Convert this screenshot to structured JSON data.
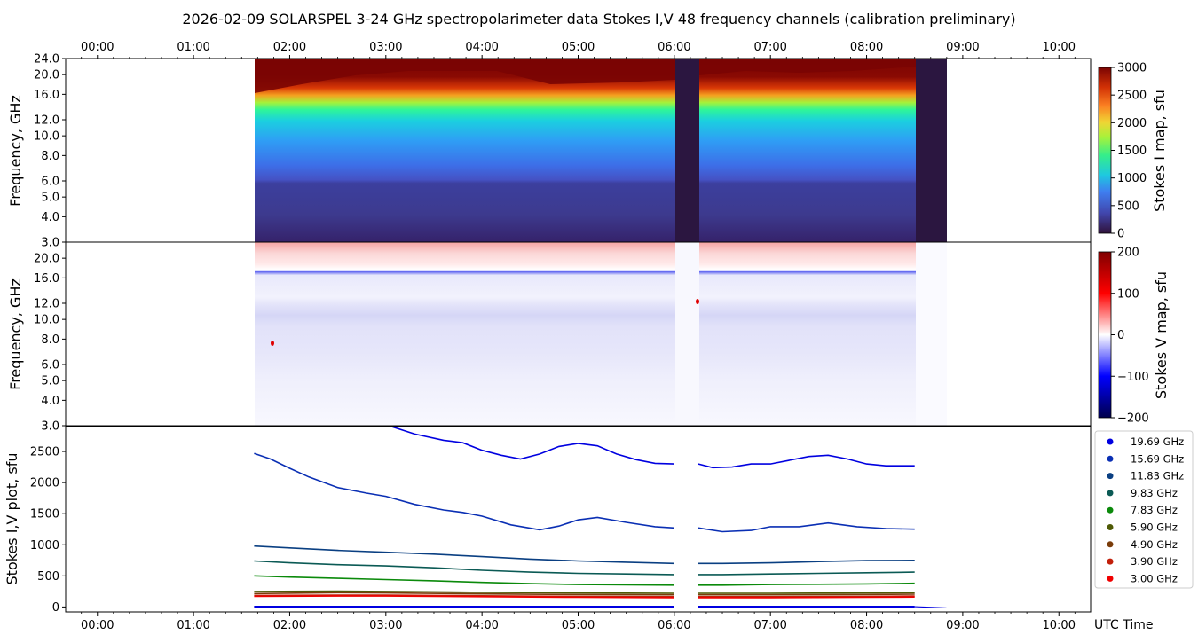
{
  "title": "2026-02-09  SOLARSPEL  3-24 GHz spectropolarimeter data   Stokes I,V   48 frequency channels   (calibration preliminary)",
  "time_ticks": [
    "00:00",
    "01:00",
    "02:00",
    "03:00",
    "04:00",
    "05:00",
    "06:00",
    "07:00",
    "08:00",
    "09:00",
    "10:00"
  ],
  "xunit_label": "UTC Time",
  "panel1": {
    "ylabel": "Frequency, GHz",
    "yticks": [
      "24.0",
      "20.0",
      "16.0",
      "12.0",
      "10.0",
      "8.0",
      "6.0",
      "5.0",
      "4.0",
      "3.0"
    ],
    "cbar_label": "Stokes I map, sfu",
    "cbar_ticks": [
      "3000",
      "2500",
      "2000",
      "1500",
      "1000",
      "500",
      "0"
    ]
  },
  "panel2": {
    "ylabel": "Frequency, GHz",
    "yticks": [
      "20.0",
      "16.0",
      "12.0",
      "10.0",
      "8.0",
      "6.0",
      "5.0",
      "4.0",
      "3.0"
    ],
    "cbar_label": "Stokes V map, sfu",
    "cbar_ticks": [
      "200",
      "100",
      "0",
      "−100",
      "−200"
    ]
  },
  "panel3": {
    "ylabel": "Stokes I,V plot, sfu",
    "yticks": [
      "2500",
      "2000",
      "1500",
      "1000",
      "500",
      "0"
    ]
  },
  "legend": [
    {
      "label": "19.69 GHz",
      "color": "#0000e0"
    },
    {
      "label": "15.69 GHz",
      "color": "#0a2fb4"
    },
    {
      "label": "11.83 GHz",
      "color": "#0a3f82"
    },
    {
      "label": "9.83 GHz",
      "color": "#0b5a55"
    },
    {
      "label": "7.83 GHz",
      "color": "#0b8a0b"
    },
    {
      "label": "5.90 GHz",
      "color": "#4f5a06"
    },
    {
      "label": "4.90 GHz",
      "color": "#7a3c0a"
    },
    {
      "label": "3.90 GHz",
      "color": "#c21f0a"
    },
    {
      "label": "3.00 GHz",
      "color": "#f00000"
    }
  ],
  "chart_data": {
    "type": "line",
    "x_unit": "UTC hour",
    "xlim": [
      -0.33,
      10.33
    ],
    "ylim": [
      -80,
      2900
    ],
    "observation_window": [
      1.63,
      8.52
    ],
    "calibration_gaps": [
      [
        6.0,
        6.25
      ],
      [
        8.52,
        8.83
      ]
    ],
    "series": [
      {
        "name": "19.69 GHz",
        "color": "#0000e0",
        "x": [
          3.0,
          3.3,
          3.6,
          3.8,
          4.0,
          4.2,
          4.4,
          4.6,
          4.8,
          5.0,
          5.2,
          5.4,
          5.6,
          5.8,
          6.0,
          6.25,
          6.4,
          6.6,
          6.8,
          7.0,
          7.2,
          7.4,
          7.6,
          7.8,
          8.0,
          8.2,
          8.5
        ],
        "y": [
          2930,
          2780,
          2680,
          2640,
          2520,
          2440,
          2380,
          2460,
          2580,
          2630,
          2590,
          2460,
          2370,
          2310,
          2300,
          2300,
          2240,
          2250,
          2300,
          2300,
          2360,
          2420,
          2440,
          2380,
          2300,
          2270,
          2270
        ]
      },
      {
        "name": "15.69 GHz",
        "color": "#0a2fb4",
        "x": [
          1.63,
          1.8,
          2.0,
          2.2,
          2.5,
          2.8,
          3.0,
          3.3,
          3.6,
          3.8,
          4.0,
          4.3,
          4.6,
          4.8,
          5.0,
          5.2,
          5.5,
          5.8,
          6.0,
          6.25,
          6.5,
          6.8,
          7.0,
          7.3,
          7.6,
          7.9,
          8.2,
          8.5
        ],
        "y": [
          2470,
          2380,
          2230,
          2090,
          1920,
          1830,
          1780,
          1650,
          1560,
          1520,
          1460,
          1320,
          1240,
          1300,
          1400,
          1440,
          1360,
          1290,
          1270,
          1270,
          1210,
          1230,
          1290,
          1290,
          1350,
          1290,
          1260,
          1250
        ]
      },
      {
        "name": "11.83 GHz",
        "color": "#0a3f82",
        "x": [
          1.63,
          2.0,
          2.5,
          3.0,
          3.5,
          4.0,
          4.5,
          5.0,
          5.5,
          6.0,
          6.25,
          6.5,
          7.0,
          7.5,
          8.0,
          8.5
        ],
        "y": [
          980,
          950,
          910,
          880,
          850,
          810,
          770,
          740,
          720,
          700,
          700,
          700,
          710,
          730,
          745,
          750
        ]
      },
      {
        "name": "9.83 GHz",
        "color": "#0b5a55",
        "x": [
          1.63,
          2.0,
          2.5,
          3.0,
          3.5,
          4.0,
          4.5,
          5.0,
          5.5,
          6.0,
          6.25,
          6.5,
          7.0,
          7.5,
          8.0,
          8.5
        ],
        "y": [
          740,
          710,
          680,
          660,
          630,
          590,
          560,
          540,
          530,
          520,
          520,
          520,
          530,
          540,
          550,
          560
        ]
      },
      {
        "name": "7.83 GHz",
        "color": "#0b8a0b",
        "x": [
          1.63,
          2.0,
          2.5,
          3.0,
          3.5,
          4.0,
          4.5,
          5.0,
          5.5,
          6.0,
          6.25,
          6.5,
          7.0,
          7.5,
          8.0,
          8.5
        ],
        "y": [
          500,
          480,
          460,
          440,
          420,
          395,
          375,
          360,
          355,
          350,
          350,
          350,
          360,
          365,
          370,
          380
        ]
      },
      {
        "name": "5.90 GHz",
        "color": "#4f5a06",
        "x": [
          1.63,
          2.5,
          3.0,
          4.0,
          5.0,
          6.0,
          6.25,
          7.0,
          8.0,
          8.5
        ],
        "y": [
          250,
          255,
          250,
          235,
          225,
          220,
          220,
          220,
          225,
          230
        ]
      },
      {
        "name": "4.90 GHz",
        "color": "#7a3c0a",
        "x": [
          1.63,
          2.5,
          3.0,
          4.0,
          5.0,
          6.0,
          6.25,
          7.0,
          8.0,
          8.5
        ],
        "y": [
          215,
          230,
          225,
          210,
          200,
          195,
          195,
          195,
          200,
          205
        ]
      },
      {
        "name": "3.90 GHz",
        "color": "#c21f0a",
        "x": [
          1.63,
          2.5,
          3.0,
          4.0,
          5.0,
          6.0,
          6.25,
          7.0,
          8.0,
          8.5
        ],
        "y": [
          185,
          190,
          190,
          180,
          170,
          165,
          165,
          165,
          170,
          175
        ]
      },
      {
        "name": "3.00 GHz",
        "color": "#f00000",
        "x": [
          1.63,
          2.5,
          3.0,
          4.0,
          5.0,
          6.0,
          6.25,
          7.0,
          8.0,
          8.5
        ],
        "y": [
          170,
          175,
          175,
          165,
          155,
          150,
          150,
          150,
          155,
          160
        ]
      }
    ],
    "stokes_v_trace": {
      "x": [
        1.63,
        8.5
      ],
      "y": [
        5,
        5
      ],
      "color": "#0000e0"
    },
    "stokes_i_colorbar_range": [
      0,
      3000
    ],
    "stokes_v_colorbar_range": [
      -200,
      200
    ],
    "frequency_range_ghz": [
      3.0,
      24.0
    ]
  }
}
